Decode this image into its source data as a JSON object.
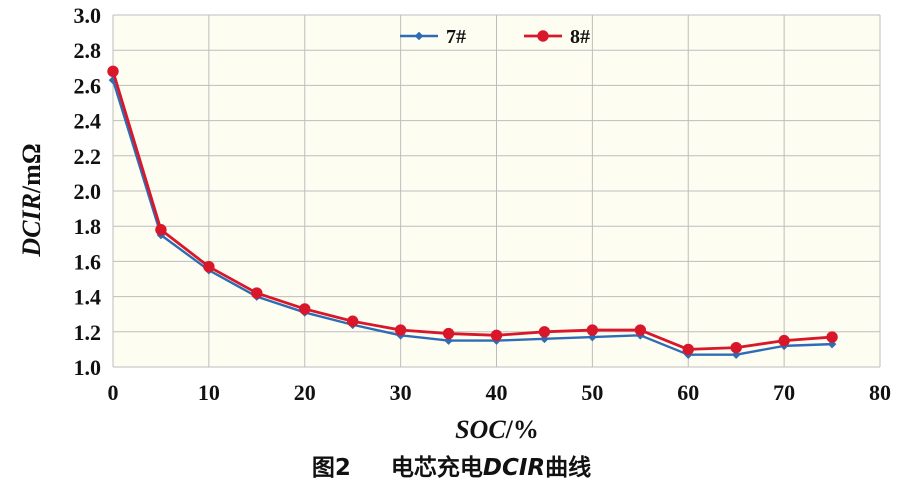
{
  "chart_data": {
    "type": "line",
    "title": "",
    "caption": {
      "figure_label": "图2",
      "text_before": "电芯充电",
      "text_italic": "DCIR",
      "text_after": "曲线"
    },
    "xlabel": "SOC/%",
    "ylabel": "DCIR/mΩ",
    "xlim": [
      0,
      80
    ],
    "ylim": [
      1.0,
      3.0
    ],
    "x_ticks": [
      0,
      10,
      20,
      30,
      40,
      50,
      60,
      70,
      80
    ],
    "y_ticks": [
      "1.0",
      "1.2",
      "1.4",
      "1.6",
      "1.8",
      "2.0",
      "2.2",
      "2.4",
      "2.6",
      "2.8",
      "3.0"
    ],
    "grid": true,
    "legend_position": "top-center",
    "x": [
      0,
      5,
      10,
      15,
      20,
      25,
      30,
      35,
      40,
      45,
      50,
      55,
      60,
      65,
      70,
      75
    ],
    "series": [
      {
        "name": "7#",
        "color": "#2e6db5",
        "marker": "diamond",
        "values": [
          2.63,
          1.75,
          1.55,
          1.4,
          1.31,
          1.24,
          1.18,
          1.15,
          1.15,
          1.16,
          1.17,
          1.18,
          1.07,
          1.07,
          1.12,
          1.13
        ]
      },
      {
        "name": "8#",
        "color": "#d9172a",
        "marker": "circle",
        "values": [
          2.68,
          1.78,
          1.57,
          1.42,
          1.33,
          1.26,
          1.21,
          1.19,
          1.18,
          1.2,
          1.21,
          1.21,
          1.1,
          1.11,
          1.15,
          1.17
        ]
      }
    ],
    "colors": {
      "plot_background": "#fefdf2",
      "grid_line": "#bdbdbd",
      "axis_text": "#111111"
    }
  }
}
